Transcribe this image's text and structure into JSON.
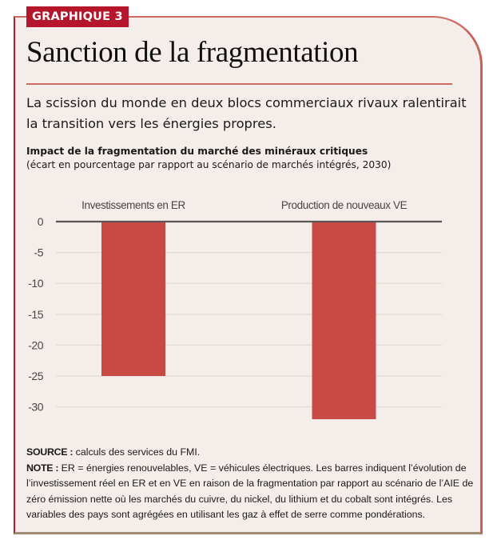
{
  "badge": "GRAPHIQUE 3",
  "title": "Sanction de la fragmentation",
  "subtitle": "La scission du monde en deux blocs commerciaux rivaux ralentirait la transition vers les énergies propres.",
  "colors": {
    "badge": "#b5162b",
    "bar": "#c94a45",
    "background": "#f5edea",
    "axis": "#5c5454",
    "grid": "#e3d9d6",
    "rule": "#cf6b63"
  },
  "chart_data": {
    "type": "bar",
    "title": "Impact de la fragmentation du marché des minéraux critiques",
    "subtitle": "(écart en pourcentage par rapport au scénario de marchés intégrés, 2030)",
    "categories": [
      "Investissements en ER",
      "Production de nouveaux VE"
    ],
    "values": [
      -25,
      -32
    ],
    "yticks": [
      0,
      -5,
      -10,
      -15,
      -20,
      -25,
      -30
    ],
    "ytick_labels": [
      "0",
      "-5",
      "-10",
      "-15",
      "-20",
      "-25",
      "-30"
    ],
    "ylim": [
      -32,
      0
    ],
    "xlabel": "",
    "ylabel": "",
    "grid": true,
    "category_label_position": "top"
  },
  "notes": {
    "source_label": "SOURCE :",
    "source_text": " calculs des services du FMI.",
    "note_label": "NOTE :",
    "note_text": " ER = énergies renouvelables, VE = véhicules électriques. Les barres indiquent l’évolution de l’investissement réel en ER et en VE en raison de la fragmentation par rapport au scénario de l’AIE de zéro émission nette où les marchés du cuivre, du nickel, du lithium et du cobalt sont intégrés. Les variables des pays sont agrégées en utilisant les gaz à effet de serre comme pondérations."
  }
}
